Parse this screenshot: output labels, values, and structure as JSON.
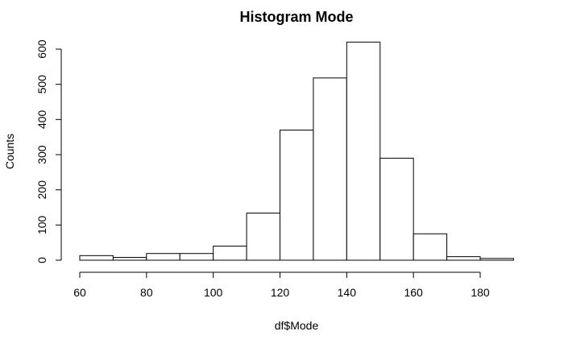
{
  "chart_data": {
    "type": "bar",
    "subtype": "histogram",
    "title": "Histogram Mode",
    "xlabel": "df$Mode",
    "ylabel": "Counts",
    "bins": [
      {
        "from": 60,
        "to": 70,
        "count": 13
      },
      {
        "from": 70,
        "to": 80,
        "count": 8
      },
      {
        "from": 80,
        "to": 90,
        "count": 19
      },
      {
        "from": 90,
        "to": 100,
        "count": 19
      },
      {
        "from": 100,
        "to": 110,
        "count": 40
      },
      {
        "from": 110,
        "to": 120,
        "count": 134
      },
      {
        "from": 120,
        "to": 130,
        "count": 370
      },
      {
        "from": 130,
        "to": 140,
        "count": 518
      },
      {
        "from": 140,
        "to": 150,
        "count": 620
      },
      {
        "from": 150,
        "to": 160,
        "count": 290
      },
      {
        "from": 160,
        "to": 170,
        "count": 75
      },
      {
        "from": 170,
        "to": 180,
        "count": 10
      },
      {
        "from": 180,
        "to": 190,
        "count": 5
      }
    ],
    "xlim": [
      60,
      190
    ],
    "ylim": [
      0,
      600
    ],
    "xticks": [
      "60",
      "80",
      "100",
      "120",
      "140",
      "160",
      "180"
    ],
    "yticks": [
      "0",
      "100",
      "200",
      "300",
      "400",
      "500",
      "600"
    ],
    "grid": false,
    "legend": "none",
    "bar_fill": "#ffffff",
    "bar_stroke": "#000000"
  }
}
